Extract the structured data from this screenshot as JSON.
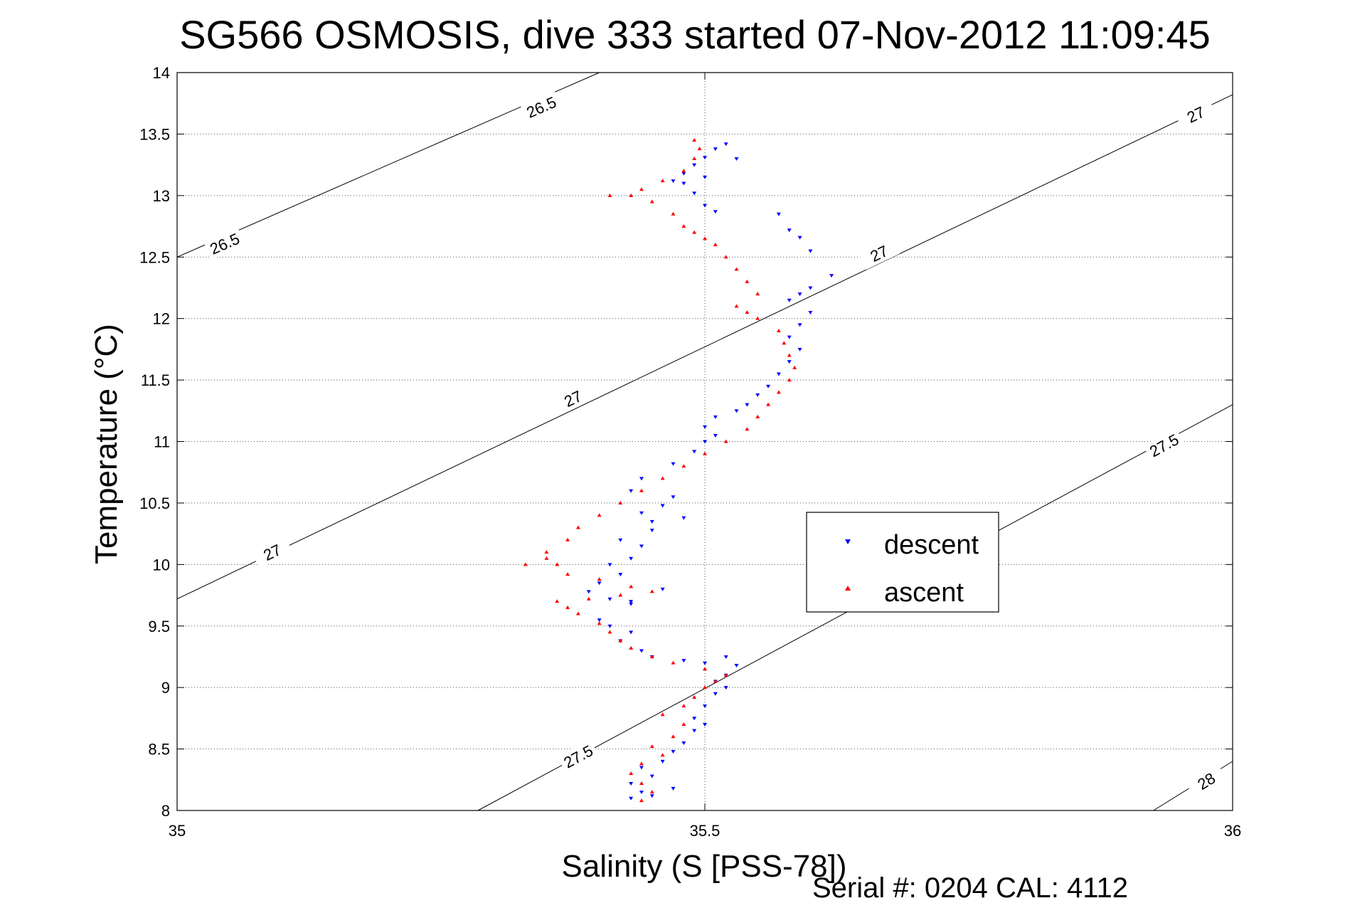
{
  "chart_data": {
    "type": "scatter",
    "title": "SG566 OSMOSIS, dive 333 started 07-Nov-2012 11:09:45",
    "xlabel": "Salinity (S [PSS-78])",
    "ylabel": "Temperature (°C)",
    "xlim": [
      35,
      36
    ],
    "ylim": [
      8,
      14
    ],
    "xticks": [
      35,
      35.5,
      36
    ],
    "xtick_labels": [
      "35",
      "35.5",
      "36"
    ],
    "yticks": [
      8,
      8.5,
      9,
      9.5,
      10,
      10.5,
      11,
      11.5,
      12,
      12.5,
      13,
      13.5,
      14
    ],
    "ytick_labels": [
      "8",
      "8.5",
      "9",
      "9.5",
      "10",
      "10.5",
      "11",
      "11.5",
      "12",
      "12.5",
      "13",
      "13.5",
      "14"
    ],
    "grid": true,
    "legend": {
      "position": "middle-right",
      "entries": [
        "descent",
        "ascent"
      ]
    },
    "footer": "Serial #: 0204  CAL: 4112",
    "contours": [
      {
        "label": "26.5",
        "points": [
          [
            35.0,
            12.5
          ],
          [
            35.4,
            14.0
          ]
        ],
        "label_positions": [
          [
            35.045,
            12.61
          ],
          [
            35.345,
            13.72
          ]
        ]
      },
      {
        "label": "27",
        "points": [
          [
            35.0,
            9.72
          ],
          [
            36.0,
            13.82
          ]
        ],
        "label_positions": [
          [
            35.09,
            10.1
          ],
          [
            35.375,
            11.35
          ],
          [
            35.665,
            12.53
          ],
          [
            35.965,
            13.66
          ]
        ]
      },
      {
        "label": "27.5",
        "points": [
          [
            35.285,
            8.0
          ],
          [
            36.0,
            11.3
          ]
        ],
        "label_positions": [
          [
            35.38,
            8.44
          ],
          [
            35.935,
            10.97
          ]
        ]
      },
      {
        "label": "28",
        "points": [
          [
            35.925,
            8.0
          ],
          [
            36.0,
            8.4
          ]
        ],
        "label_positions": [
          [
            35.975,
            8.24
          ]
        ]
      }
    ],
    "series": [
      {
        "name": "descent",
        "color": "#0000ff",
        "marker": "triangle-down",
        "points": [
          [
            35.52,
            13.42
          ],
          [
            35.51,
            13.38
          ],
          [
            35.5,
            13.31
          ],
          [
            35.49,
            13.25
          ],
          [
            35.48,
            13.18
          ],
          [
            35.47,
            13.12
          ],
          [
            35.48,
            13.1
          ],
          [
            35.5,
            13.15
          ],
          [
            35.53,
            13.3
          ],
          [
            35.49,
            13.02
          ],
          [
            35.5,
            12.92
          ],
          [
            35.51,
            12.87
          ],
          [
            35.57,
            12.85
          ],
          [
            35.58,
            12.72
          ],
          [
            35.59,
            12.66
          ],
          [
            35.6,
            12.55
          ],
          [
            35.62,
            12.35
          ],
          [
            35.6,
            12.25
          ],
          [
            35.59,
            12.2
          ],
          [
            35.58,
            12.15
          ],
          [
            35.6,
            12.05
          ],
          [
            35.59,
            11.95
          ],
          [
            35.58,
            11.85
          ],
          [
            35.59,
            11.75
          ],
          [
            35.58,
            11.65
          ],
          [
            35.57,
            11.55
          ],
          [
            35.56,
            11.45
          ],
          [
            35.55,
            11.38
          ],
          [
            35.54,
            11.3
          ],
          [
            35.53,
            11.25
          ],
          [
            35.51,
            11.2
          ],
          [
            35.5,
            11.12
          ],
          [
            35.51,
            11.05
          ],
          [
            35.5,
            11.0
          ],
          [
            35.49,
            10.92
          ],
          [
            35.47,
            10.82
          ],
          [
            35.44,
            10.7
          ],
          [
            35.43,
            10.6
          ],
          [
            35.47,
            10.55
          ],
          [
            35.46,
            10.48
          ],
          [
            35.44,
            10.42
          ],
          [
            35.45,
            10.35
          ],
          [
            35.48,
            10.38
          ],
          [
            35.45,
            10.28
          ],
          [
            35.42,
            10.2
          ],
          [
            35.44,
            10.15
          ],
          [
            35.43,
            10.05
          ],
          [
            35.41,
            10.0
          ],
          [
            35.42,
            9.92
          ],
          [
            35.4,
            9.85
          ],
          [
            35.39,
            9.78
          ],
          [
            35.41,
            9.72
          ],
          [
            35.43,
            9.68
          ],
          [
            35.46,
            9.8
          ],
          [
            35.43,
            9.7
          ],
          [
            35.4,
            9.55
          ],
          [
            35.41,
            9.5
          ],
          [
            35.43,
            9.45
          ],
          [
            35.42,
            9.38
          ],
          [
            35.44,
            9.3
          ],
          [
            35.45,
            9.25
          ],
          [
            35.48,
            9.22
          ],
          [
            35.5,
            9.2
          ],
          [
            35.52,
            9.25
          ],
          [
            35.53,
            9.18
          ],
          [
            35.52,
            9.1
          ],
          [
            35.51,
            9.05
          ],
          [
            35.52,
            9.0
          ],
          [
            35.51,
            8.95
          ],
          [
            35.5,
            8.85
          ],
          [
            35.49,
            8.75
          ],
          [
            35.5,
            8.7
          ],
          [
            35.49,
            8.65
          ],
          [
            35.48,
            8.55
          ],
          [
            35.47,
            8.48
          ],
          [
            35.46,
            8.4
          ],
          [
            35.44,
            8.35
          ],
          [
            35.45,
            8.28
          ],
          [
            35.43,
            8.22
          ],
          [
            35.44,
            8.15
          ],
          [
            35.43,
            8.1
          ],
          [
            35.45,
            8.12
          ],
          [
            35.47,
            8.18
          ]
        ]
      },
      {
        "name": "ascent",
        "color": "#ff0000",
        "marker": "triangle-up",
        "points": [
          [
            35.44,
            8.08
          ],
          [
            35.45,
            8.15
          ],
          [
            35.44,
            8.22
          ],
          [
            35.43,
            8.3
          ],
          [
            35.44,
            8.38
          ],
          [
            35.46,
            8.45
          ],
          [
            35.45,
            8.52
          ],
          [
            35.47,
            8.6
          ],
          [
            35.48,
            8.7
          ],
          [
            35.46,
            8.78
          ],
          [
            35.48,
            8.85
          ],
          [
            35.49,
            8.92
          ],
          [
            35.5,
            9.0
          ],
          [
            35.51,
            9.05
          ],
          [
            35.52,
            9.1
          ],
          [
            35.5,
            9.15
          ],
          [
            35.47,
            9.2
          ],
          [
            35.45,
            9.25
          ],
          [
            35.43,
            9.32
          ],
          [
            35.42,
            9.38
          ],
          [
            35.41,
            9.45
          ],
          [
            35.4,
            9.52
          ],
          [
            35.38,
            9.6
          ],
          [
            35.37,
            9.65
          ],
          [
            35.36,
            9.7
          ],
          [
            35.39,
            9.72
          ],
          [
            35.42,
            9.75
          ],
          [
            35.45,
            9.78
          ],
          [
            35.43,
            9.82
          ],
          [
            35.4,
            9.88
          ],
          [
            35.37,
            9.92
          ],
          [
            35.36,
            10.0
          ],
          [
            35.35,
            10.05
          ],
          [
            35.33,
            10.0
          ],
          [
            35.35,
            10.1
          ],
          [
            35.37,
            10.2
          ],
          [
            35.38,
            10.3
          ],
          [
            35.4,
            10.4
          ],
          [
            35.42,
            10.5
          ],
          [
            35.44,
            10.6
          ],
          [
            35.46,
            10.7
          ],
          [
            35.48,
            10.8
          ],
          [
            35.5,
            10.9
          ],
          [
            35.52,
            11.0
          ],
          [
            35.54,
            11.1
          ],
          [
            35.55,
            11.2
          ],
          [
            35.56,
            11.3
          ],
          [
            35.57,
            11.4
          ],
          [
            35.58,
            11.5
          ],
          [
            35.585,
            11.6
          ],
          [
            35.58,
            11.7
          ],
          [
            35.575,
            11.8
          ],
          [
            35.57,
            11.9
          ],
          [
            35.55,
            12.0
          ],
          [
            35.54,
            12.05
          ],
          [
            35.53,
            12.1
          ],
          [
            35.55,
            12.2
          ],
          [
            35.54,
            12.3
          ],
          [
            35.53,
            12.4
          ],
          [
            35.52,
            12.5
          ],
          [
            35.51,
            12.6
          ],
          [
            35.5,
            12.65
          ],
          [
            35.49,
            12.7
          ],
          [
            35.48,
            12.75
          ],
          [
            35.47,
            12.85
          ],
          [
            35.45,
            12.95
          ],
          [
            35.43,
            13.0
          ],
          [
            35.41,
            13.0
          ],
          [
            35.44,
            13.05
          ],
          [
            35.46,
            13.12
          ],
          [
            35.48,
            13.2
          ],
          [
            35.49,
            13.3
          ],
          [
            35.495,
            13.38
          ],
          [
            35.49,
            13.45
          ]
        ]
      }
    ]
  }
}
